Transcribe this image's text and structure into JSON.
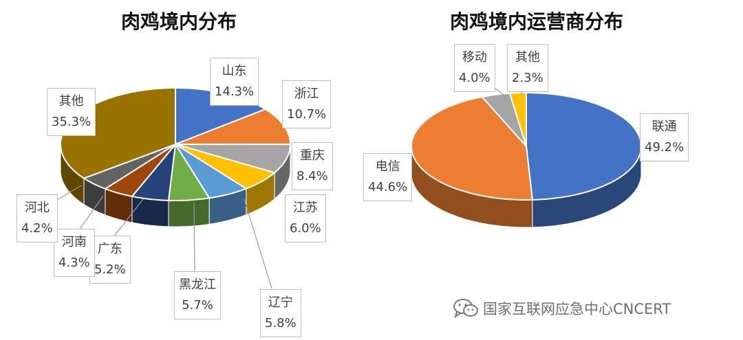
{
  "chart_data": [
    {
      "type": "pie",
      "title": "肉鸡境内分布",
      "slices": [
        {
          "name": "山东",
          "value": 14.3,
          "label": "14.3%",
          "color": "#4472C4"
        },
        {
          "name": "浙江",
          "value": 10.7,
          "label": "10.7%",
          "color": "#ED7D31"
        },
        {
          "name": "重庆",
          "value": 8.4,
          "label": "8.4%",
          "color": "#A5A5A5"
        },
        {
          "name": "江苏",
          "value": 6.0,
          "label": "6.0%",
          "color": "#FFC000"
        },
        {
          "name": "辽宁",
          "value": 5.8,
          "label": "5.8%",
          "color": "#5B9BD5"
        },
        {
          "name": "黑龙江",
          "value": 5.7,
          "label": "5.7%",
          "color": "#70AD47"
        },
        {
          "name": "广东",
          "value": 5.2,
          "label": "5.2%",
          "color": "#264478"
        },
        {
          "name": "河南",
          "value": 4.3,
          "label": "4.3%",
          "color": "#9E480E"
        },
        {
          "name": "河北",
          "value": 4.2,
          "label": "4.2%",
          "color": "#636363"
        },
        {
          "name": "其他",
          "value": 35.3,
          "label": "35.3%",
          "color": "#997300"
        }
      ]
    },
    {
      "type": "pie",
      "title": "肉鸡境内运营商分布",
      "slices": [
        {
          "name": "联通",
          "value": 49.2,
          "label": "49.2%",
          "color": "#4472C4"
        },
        {
          "name": "电信",
          "value": 44.6,
          "label": "44.6%",
          "color": "#ED7D31"
        },
        {
          "name": "移动",
          "value": 4.0,
          "label": "4.0%",
          "color": "#A5A5A5"
        },
        {
          "name": "其他",
          "value": 2.3,
          "label": "2.3%",
          "color": "#FFC000"
        }
      ]
    }
  ],
  "watermark": {
    "text": "国家互联网应急中心CNCERT",
    "icon": "wechat-icon"
  }
}
